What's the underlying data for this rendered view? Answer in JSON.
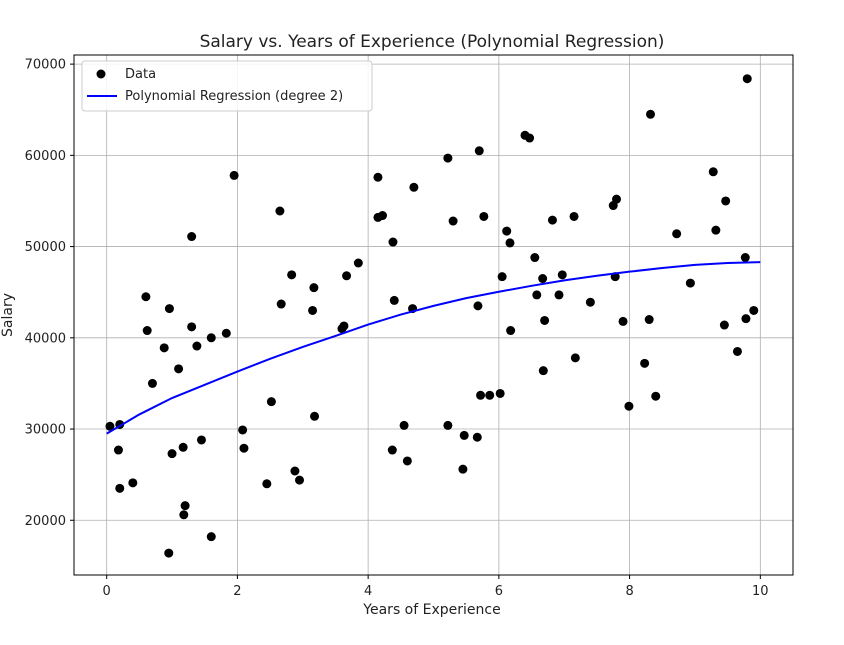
{
  "chart_data": {
    "type": "scatter",
    "title": "Salary vs. Years of Experience (Polynomial Regression)",
    "xlabel": "Years of Experience",
    "ylabel": "Salary",
    "xlim": [
      -0.5,
      10.5
    ],
    "ylim": [
      14000,
      71000
    ],
    "xticks": [
      0,
      2,
      4,
      6,
      8,
      10
    ],
    "yticks": [
      20000,
      30000,
      40000,
      50000,
      60000,
      70000
    ],
    "grid": true,
    "legend_position": "top-left",
    "series": [
      {
        "name": "Data",
        "kind": "scatter",
        "color": "#000000",
        "x": [
          0.05,
          0.2,
          0.18,
          0.2,
          0.4,
          0.6,
          0.62,
          0.7,
          0.88,
          0.95,
          0.96,
          1.0,
          1.1,
          1.18,
          1.17,
          1.2,
          1.3,
          1.3,
          1.38,
          1.45,
          1.6,
          1.6,
          1.83,
          1.95,
          2.08,
          2.1,
          2.45,
          2.52,
          2.65,
          2.67,
          2.83,
          2.88,
          2.95,
          3.15,
          3.17,
          3.18,
          3.6,
          3.63,
          3.67,
          3.85,
          4.15,
          4.15,
          4.22,
          4.37,
          4.38,
          4.4,
          4.55,
          4.6,
          4.68,
          4.7,
          5.22,
          5.22,
          5.3,
          5.45,
          5.47,
          5.67,
          5.68,
          5.7,
          5.72,
          5.77,
          5.86,
          6.02,
          6.05,
          6.12,
          6.17,
          6.18,
          6.4,
          6.47,
          6.55,
          6.58,
          6.67,
          6.68,
          6.7,
          6.82,
          6.92,
          6.97,
          7.15,
          7.17,
          7.4,
          7.75,
          7.78,
          7.8,
          7.9,
          7.99,
          8.23,
          8.3,
          8.32,
          8.4,
          8.72,
          8.93,
          9.28,
          9.32,
          9.45,
          9.47,
          9.65,
          9.77,
          9.78,
          9.8,
          9.9
        ],
        "y": [
          30300,
          30500,
          27700,
          23500,
          24100,
          44500,
          40800,
          35000,
          38900,
          16400,
          43200,
          27300,
          36600,
          20600,
          28000,
          21600,
          51100,
          41200,
          39100,
          28800,
          40000,
          18200,
          40500,
          57800,
          29900,
          27900,
          24000,
          33000,
          53900,
          43700,
          46900,
          25400,
          24400,
          43000,
          45500,
          31400,
          41000,
          41300,
          46800,
          48200,
          57600,
          53200,
          53400,
          27700,
          50500,
          44100,
          30400,
          26500,
          43200,
          56500,
          30400,
          59700,
          52800,
          25600,
          29300,
          29100,
          43500,
          60500,
          33700,
          53300,
          33700,
          33900,
          46700,
          51700,
          50400,
          40800,
          62200,
          61900,
          48800,
          44700,
          46500,
          36400,
          41900,
          52900,
          44700,
          46900,
          53300,
          37800,
          43900,
          54500,
          46700,
          55200,
          41800,
          32500,
          37200,
          42000,
          64500,
          33600,
          51400,
          46000,
          58200,
          51800,
          41400,
          55000,
          38500,
          48800,
          42100,
          68400,
          43000
        ]
      },
      {
        "name": "Polynomial Regression (degree 2)",
        "kind": "line",
        "color": "#0000ff",
        "x": [
          0,
          0.5,
          1,
          1.5,
          2,
          2.5,
          3,
          3.5,
          4,
          4.5,
          5,
          5.5,
          6,
          6.5,
          7,
          7.5,
          8,
          8.5,
          9,
          9.5,
          10
        ],
        "y": [
          29500,
          31600,
          33400,
          34850,
          36300,
          37700,
          39000,
          40200,
          41450,
          42550,
          43500,
          44350,
          45050,
          45700,
          46300,
          46800,
          47250,
          47650,
          48000,
          48200,
          48300
        ]
      }
    ]
  }
}
